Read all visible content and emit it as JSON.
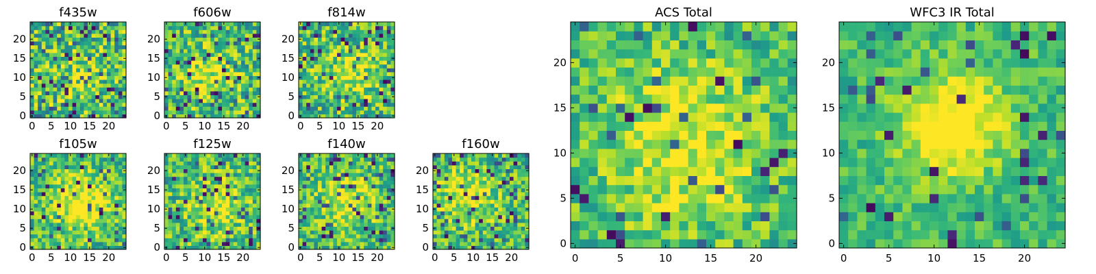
{
  "chart_data": [
    {
      "type": "heatmap",
      "title": "f435w",
      "grid_size": 25,
      "xlim": [
        0,
        24
      ],
      "ylim": [
        0,
        24
      ],
      "x_ticks": [
        0,
        5,
        10,
        15,
        20
      ],
      "y_ticks": [
        0,
        5,
        10,
        15,
        20
      ],
      "noise": 0.62,
      "blob_strength": 0.15,
      "blob_center": [
        12,
        11
      ],
      "blob_radius": 5,
      "dark_pixel_fraction": 0.05,
      "seed": 11,
      "colormap": "viridis"
    },
    {
      "type": "heatmap",
      "title": "f606w",
      "grid_size": 25,
      "xlim": [
        0,
        24
      ],
      "ylim": [
        0,
        24
      ],
      "x_ticks": [
        0,
        5,
        10,
        15,
        20
      ],
      "y_ticks": [
        0,
        5,
        10,
        15,
        20
      ],
      "noise": 0.55,
      "blob_strength": 0.25,
      "blob_center": [
        11,
        11
      ],
      "blob_radius": 5,
      "dark_pixel_fraction": 0.04,
      "seed": 22,
      "colormap": "viridis"
    },
    {
      "type": "heatmap",
      "title": "f814w",
      "grid_size": 25,
      "xlim": [
        0,
        24
      ],
      "ylim": [
        0,
        24
      ],
      "x_ticks": [
        0,
        5,
        10,
        15,
        20
      ],
      "y_ticks": [
        0,
        5,
        10,
        15,
        20
      ],
      "noise": 0.58,
      "blob_strength": 0.25,
      "blob_center": [
        13,
        12
      ],
      "blob_radius": 5,
      "dark_pixel_fraction": 0.04,
      "seed": 33,
      "colormap": "viridis"
    },
    {
      "type": "heatmap",
      "title": "f105w",
      "grid_size": 25,
      "xlim": [
        0,
        24
      ],
      "ylim": [
        0,
        24
      ],
      "x_ticks": [
        0,
        5,
        10,
        15,
        20
      ],
      "y_ticks": [
        0,
        5,
        10,
        15,
        20
      ],
      "noise": 0.5,
      "blob_strength": 0.4,
      "blob_center": [
        13,
        12
      ],
      "blob_radius": 5,
      "dark_pixel_fraction": 0.03,
      "seed": 44,
      "colormap": "viridis"
    },
    {
      "type": "heatmap",
      "title": "f125w",
      "grid_size": 25,
      "xlim": [
        0,
        24
      ],
      "ylim": [
        0,
        24
      ],
      "x_ticks": [
        0,
        5,
        10,
        15,
        20
      ],
      "y_ticks": [
        0,
        5,
        10,
        15,
        20
      ],
      "noise": 0.52,
      "blob_strength": 0.3,
      "blob_center": [
        13,
        11
      ],
      "blob_radius": 5,
      "dark_pixel_fraction": 0.04,
      "seed": 55,
      "colormap": "viridis"
    },
    {
      "type": "heatmap",
      "title": "f140w",
      "grid_size": 25,
      "xlim": [
        0,
        24
      ],
      "ylim": [
        0,
        24
      ],
      "x_ticks": [
        0,
        5,
        10,
        15,
        20
      ],
      "y_ticks": [
        0,
        5,
        10,
        15,
        20
      ],
      "noise": 0.5,
      "blob_strength": 0.3,
      "blob_center": [
        12,
        12
      ],
      "blob_radius": 5,
      "dark_pixel_fraction": 0.04,
      "seed": 66,
      "colormap": "viridis"
    },
    {
      "type": "heatmap",
      "title": "f160w",
      "grid_size": 25,
      "xlim": [
        0,
        24
      ],
      "ylim": [
        0,
        24
      ],
      "x_ticks": [
        0,
        5,
        10,
        15,
        20
      ],
      "y_ticks": [
        0,
        5,
        10,
        15,
        20
      ],
      "noise": 0.5,
      "blob_strength": 0.3,
      "blob_center": [
        9,
        14
      ],
      "blob_radius": 5,
      "dark_pixel_fraction": 0.05,
      "seed": 77,
      "colormap": "viridis"
    },
    {
      "type": "heatmap",
      "title": "ACS Total",
      "grid_size": 25,
      "xlim": [
        0,
        24
      ],
      "ylim": [
        0,
        24
      ],
      "x_ticks": [
        0,
        5,
        10,
        15,
        20
      ],
      "y_ticks": [
        0,
        5,
        10,
        15,
        20
      ],
      "noise": 0.42,
      "blob_strength": 0.3,
      "blob_center": [
        12,
        11
      ],
      "blob_radius": 6,
      "dark_pixel_fraction": 0.025,
      "seed": 88,
      "colormap": "viridis"
    },
    {
      "type": "heatmap",
      "title": "WFC3 IR Total",
      "grid_size": 25,
      "xlim": [
        0,
        24
      ],
      "ylim": [
        0,
        24
      ],
      "x_ticks": [
        0,
        5,
        10,
        15,
        20
      ],
      "y_ticks": [
        0,
        5,
        10,
        15,
        20
      ],
      "noise": 0.3,
      "blob_strength": 0.45,
      "blob_center": [
        12,
        13
      ],
      "blob_radius": 4,
      "dark_pixel_fraction": 0.025,
      "seed": 99,
      "colormap": "viridis"
    }
  ]
}
